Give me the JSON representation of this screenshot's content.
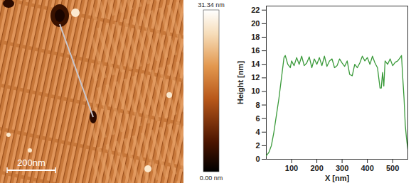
{
  "image": {
    "scale_bar": "200nm"
  },
  "colorbar": {
    "range": [
      0,
      31.34
    ],
    "ticks": [
      {
        "value": 0,
        "label": "0.00 nm"
      },
      {
        "value": 31.34,
        "label": "31.34 nm"
      }
    ]
  },
  "chart_data": {
    "type": "line",
    "xlabel": "X [nm]",
    "ylabel": "Height [nm]",
    "x": [
      0,
      10,
      20,
      30,
      40,
      50,
      60,
      70,
      75,
      85,
      95,
      100,
      110,
      120,
      130,
      140,
      150,
      160,
      170,
      180,
      190,
      200,
      210,
      220,
      230,
      240,
      250,
      260,
      270,
      280,
      290,
      300,
      310,
      320,
      330,
      340,
      350,
      360,
      370,
      380,
      390,
      400,
      410,
      420,
      430,
      440,
      450,
      455,
      460,
      465,
      470,
      480,
      490,
      500,
      510,
      520,
      530,
      535,
      540,
      545,
      550,
      555,
      560
    ],
    "values": [
      0.5,
      1,
      2,
      4,
      6.5,
      9,
      12,
      15,
      15.3,
      14,
      13.5,
      14.5,
      13.8,
      15,
      14,
      15.2,
      13.8,
      14.2,
      15.1,
      13.5,
      14.8,
      14,
      15,
      13.8,
      15.2,
      13.7,
      14.5,
      14.8,
      13.5,
      13.8,
      14.8,
      14.2,
      13.7,
      14.5,
      12.5,
      12.3,
      14,
      13.5,
      14.2,
      15.2,
      14.5,
      15,
      14,
      15.2,
      14.2,
      13.5,
      10.5,
      10.5,
      12.8,
      10.8,
      14.5,
      14,
      14.8,
      13.8,
      14.3,
      14.5,
      15,
      15.3,
      12,
      9,
      5,
      3,
      1.5
    ],
    "color": "#3a9a3a",
    "xlim": [
      0,
      560
    ],
    "xticks": [
      100,
      200,
      300,
      400,
      500
    ],
    "ylim": [
      0,
      22.6
    ],
    "yticks": [
      0,
      2,
      4,
      6,
      8,
      10,
      12,
      14,
      16,
      18,
      20,
      22
    ]
  }
}
